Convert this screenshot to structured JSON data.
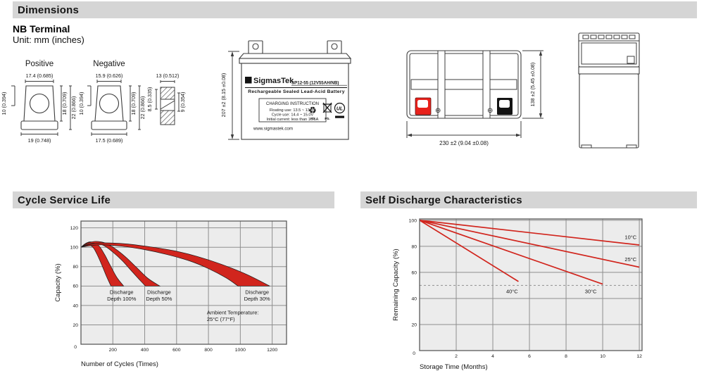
{
  "colors": {
    "accent_red": "#d1251d",
    "terminal_red": "#e8211b",
    "plot_bg": "#ececec",
    "grid": "#8e8e8e",
    "bar_bg": "#d5d5d5"
  },
  "header": {
    "dimensions_title": "Dimensions",
    "cycle_title": "Cycle Service Life",
    "self_discharge_title": "Self Discharge Characteristics"
  },
  "terminal": {
    "heading": "NB Terminal",
    "unit": "Unit: mm (inches)",
    "positive": {
      "label": "Positive",
      "top": "17.4 (0.685)",
      "left": "10 (0.394)",
      "bottom": "19 (0.748)",
      "side_inner": "18 (0.709)",
      "side_outer": "22 (0.866)"
    },
    "negative": {
      "label": "Negative",
      "top": "15.9 (0.626)",
      "left": "10 (0.394)",
      "bottom": "17.5 (0.689)",
      "side_inner": "18 (0.709)",
      "side_outer": "22 (0.866)"
    },
    "profile": {
      "top": "13 (0.512)",
      "left": "8.5 (0.335)",
      "right": "9 (0.354)"
    }
  },
  "battery": {
    "brand": "SigmasTek",
    "logo_glyph": "Σ",
    "model": "SP12-55 (12V55AH/NB)",
    "type_line": "Rechargeable Sealed Lead-Acid Battery",
    "charging_title": "CHARGING INSTRUCTION",
    "charging_lines": [
      "Floating use: 13.5 ~ 13.8V",
      "Cycle use: 14.4 ~ 15.0V",
      "Initial current: less than 16.5A"
    ],
    "website": "www.sigmastek.com",
    "height_dim": "207 ±2 (8.15 ±0.08)",
    "width_dim": "230 ±2 (9.04 ±0.08)",
    "depth_dim": "138 ±2 (5.45 ±0.08)",
    "icons": {
      "plus": "⊕",
      "minus": "⊖",
      "recycle": "♻",
      "pb": "Pb",
      "pb_dot": "Pb.",
      "ul": "UL"
    }
  },
  "chart_data": [
    {
      "type": "area",
      "title": "Cycle Service Life",
      "xlabel": "Number of Cycles (Times)",
      "ylabel": "Capacity (%)",
      "xlim": [
        0,
        1290
      ],
      "ylim": [
        0,
        127
      ],
      "xticks": [
        200,
        400,
        600,
        800,
        1000,
        1200
      ],
      "yticks": [
        20,
        40,
        60,
        80,
        100,
        120
      ],
      "origin_label": "0",
      "bands": [
        {
          "name": "Discharge Depth 100%",
          "upper": [
            [
              0,
              100
            ],
            [
              25,
              103.5
            ],
            [
              55,
              105.5
            ],
            [
              90,
              104.5
            ],
            [
              120,
              100
            ],
            [
              150,
              92
            ],
            [
              185,
              81
            ],
            [
              225,
              69
            ],
            [
              268,
              60
            ]
          ],
          "lower": [
            [
              0,
              100
            ],
            [
              20,
              101.5
            ],
            [
              45,
              102.5
            ],
            [
              75,
              100
            ],
            [
              100,
              93
            ],
            [
              130,
              82
            ],
            [
              160,
              70
            ],
            [
              188,
              60
            ]
          ]
        },
        {
          "name": "Discharge Depth 50%",
          "upper": [
            [
              0,
              100
            ],
            [
              40,
              104
            ],
            [
              90,
              106
            ],
            [
              150,
              104.5
            ],
            [
              210,
              99
            ],
            [
              280,
              90
            ],
            [
              350,
              79
            ],
            [
              420,
              68
            ],
            [
              495,
              60
            ]
          ],
          "lower": [
            [
              0,
              100
            ],
            [
              35,
              102.5
            ],
            [
              80,
              104
            ],
            [
              140,
              102
            ],
            [
              200,
              95
            ],
            [
              260,
              86
            ],
            [
              320,
              75
            ],
            [
              370,
              66
            ],
            [
              405,
              60
            ]
          ]
        },
        {
          "name": "Discharge Depth 30%",
          "upper": [
            [
              0,
              100
            ],
            [
              60,
              103
            ],
            [
              140,
              104.5
            ],
            [
              280,
              103.5
            ],
            [
              430,
              100.5
            ],
            [
              580,
              96.5
            ],
            [
              730,
              90.5
            ],
            [
              880,
              82.5
            ],
            [
              1040,
              72
            ],
            [
              1185,
              60
            ]
          ],
          "lower": [
            [
              0,
              100
            ],
            [
              55,
              101.5
            ],
            [
              130,
              102.5
            ],
            [
              260,
              101
            ],
            [
              400,
              97.5
            ],
            [
              540,
              92.5
            ],
            [
              680,
              86
            ],
            [
              800,
              78
            ],
            [
              910,
              68.5
            ],
            [
              985,
              60
            ]
          ]
        }
      ],
      "annotations": [
        {
          "x": 255,
          "y": 52,
          "anchor": "middle",
          "lines": [
            "Discharge",
            "Depth 100%"
          ]
        },
        {
          "x": 490,
          "y": 52,
          "anchor": "middle",
          "lines": [
            "Discharge",
            "Depth 50%"
          ]
        },
        {
          "x": 1105,
          "y": 52,
          "anchor": "middle",
          "lines": [
            "Discharge",
            "Depth 30%"
          ]
        },
        {
          "x": 790,
          "y": 31,
          "anchor": "start",
          "lines": [
            "Ambient Temperature:",
            "25°C (77°F)"
          ]
        }
      ]
    },
    {
      "type": "line",
      "title": "Self Discharge Characteristics",
      "xlabel": "Storage Time (Months)",
      "ylabel": "Remaining Capacity (%)",
      "xlim": [
        0,
        12.15
      ],
      "ylim": [
        0,
        101
      ],
      "xticks": [
        2,
        4,
        6,
        8,
        10,
        12
      ],
      "yticks": [
        20,
        40,
        60,
        80,
        100
      ],
      "origin_label": "0",
      "dashed_y": 50,
      "series": [
        {
          "name": "10°C",
          "points": [
            [
              0,
              100
            ],
            [
              12,
              81
            ]
          ],
          "label_pos": [
            11.85,
            85.5
          ],
          "label_anchor": "end"
        },
        {
          "name": "25°C",
          "points": [
            [
              0,
              100
            ],
            [
              12,
              64
            ]
          ],
          "label_pos": [
            11.85,
            68.5
          ],
          "label_anchor": "end"
        },
        {
          "name": "30°C",
          "points": [
            [
              0,
              100
            ],
            [
              10,
              51
            ]
          ],
          "label_pos": [
            9.35,
            44
          ],
          "label_anchor": "middle"
        },
        {
          "name": "40°C",
          "points": [
            [
              0,
              100
            ],
            [
              5.4,
              53
            ]
          ],
          "label_pos": [
            5.05,
            44
          ],
          "label_anchor": "middle"
        }
      ]
    }
  ]
}
